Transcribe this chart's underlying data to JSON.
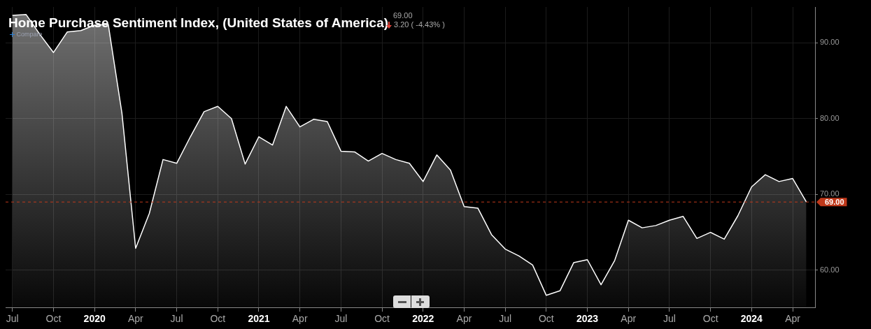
{
  "chart_data": {
    "type": "area",
    "title": "Home Purchase Sentiment Index, (United States of America)",
    "annotations": [
      "69.00",
      "3.20 ( -4.43% )",
      "Compare"
    ],
    "x": [
      "2019-07",
      "2019-08",
      "2019-09",
      "2019-10",
      "2019-11",
      "2019-12",
      "2020-01",
      "2020-02",
      "2020-03",
      "2020-04",
      "2020-05",
      "2020-06",
      "2020-07",
      "2020-08",
      "2020-09",
      "2020-10",
      "2020-11",
      "2020-12",
      "2021-01",
      "2021-02",
      "2021-03",
      "2021-04",
      "2021-05",
      "2021-06",
      "2021-07",
      "2021-08",
      "2021-09",
      "2021-10",
      "2021-11",
      "2021-12",
      "2022-01",
      "2022-02",
      "2022-03",
      "2022-04",
      "2022-05",
      "2022-06",
      "2022-07",
      "2022-08",
      "2022-09",
      "2022-10",
      "2022-11",
      "2022-12",
      "2023-01",
      "2023-02",
      "2023-03",
      "2023-04",
      "2023-05",
      "2023-06",
      "2023-07",
      "2023-08",
      "2023-09",
      "2023-10",
      "2023-11",
      "2023-12",
      "2024-01",
      "2024-02",
      "2024-03",
      "2024-04",
      "2024-05"
    ],
    "series": [
      {
        "color": "#ffffff",
        "values": [
          93.6,
          93.7,
          91.1,
          88.7,
          91.4,
          91.6,
          92.3,
          92.4,
          80.7,
          62.9,
          67.5,
          74.6,
          74.1,
          77.6,
          80.9,
          81.6,
          80.0,
          74.0,
          77.6,
          76.5,
          81.6,
          78.9,
          79.9,
          79.6,
          75.7,
          75.6,
          74.4,
          75.4,
          74.6,
          74.1,
          71.7,
          75.2,
          73.2,
          68.4,
          68.2,
          64.7,
          62.8,
          61.9,
          60.7,
          56.7,
          57.3,
          61.0,
          61.4,
          58.1,
          61.3,
          66.6,
          65.6,
          65.9,
          66.6,
          67.1,
          64.2,
          65.0,
          64.1,
          67.2,
          71.0,
          72.6,
          71.7,
          72.1,
          69.0
        ]
      }
    ],
    "xlim": [
      "2019-06-16",
      "2024-05-20"
    ],
    "xticks": [
      {
        "value": "2019-07",
        "label": "Jul"
      },
      {
        "value": "2019-10",
        "label": "Oct"
      },
      {
        "value": "2020-01",
        "label": "2020"
      },
      {
        "value": "2020-04",
        "label": "Apr"
      },
      {
        "value": "2020-07",
        "label": "Jul"
      },
      {
        "value": "2020-10",
        "label": "Oct"
      },
      {
        "value": "2021-01",
        "label": "2021"
      },
      {
        "value": "2021-04",
        "label": "Apr"
      },
      {
        "value": "2021-07",
        "label": "Jul"
      },
      {
        "value": "2021-10",
        "label": "Oct"
      },
      {
        "value": "2022-01",
        "label": "2022"
      },
      {
        "value": "2022-04",
        "label": "Apr"
      },
      {
        "value": "2022-07",
        "label": "Jul"
      },
      {
        "value": "2022-10",
        "label": "Oct"
      },
      {
        "value": "2023-01",
        "label": "2023"
      },
      {
        "value": "2023-04",
        "label": "Apr"
      },
      {
        "value": "2023-07",
        "label": "Jul"
      },
      {
        "value": "2023-10",
        "label": "Oct"
      },
      {
        "value": "2024-01",
        "label": "2024"
      },
      {
        "value": "2024-04",
        "label": "Apr"
      }
    ],
    "ylim": [
      55.1,
      94.7
    ],
    "yticks": [
      {
        "value": 60,
        "label": "60.00"
      },
      {
        "value": 70,
        "label": "70.00"
      },
      {
        "value": 80,
        "label": "80.00"
      },
      {
        "value": 90,
        "label": "90.00"
      }
    ],
    "ref_lines": [
      {
        "axis": "y",
        "value": 69,
        "label": "69.00",
        "color": "#c0391b",
        "line_style": "dashed"
      }
    ],
    "grid": true,
    "legend": false
  }
}
